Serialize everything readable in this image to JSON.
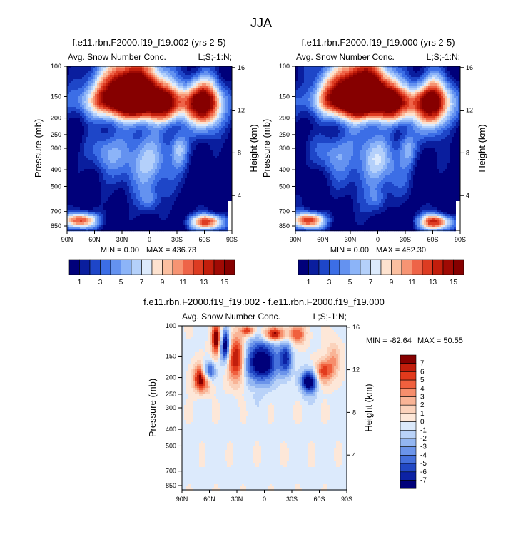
{
  "figure_title": "JJA",
  "chart_data": [
    {
      "type": "heatmap",
      "title": "f.e11.rbn.F2000.f19_f19.002 (yrs 2-5)",
      "left_label": "Avg. Snow Number Conc.",
      "right_label": "L;S;-1:N;",
      "xlabel": "",
      "ylabel": "Pressure (mb)",
      "y2label": "Height (km)",
      "x_ticks": [
        "90N",
        "60N",
        "30N",
        "0",
        "30S",
        "60S",
        "90S"
      ],
      "x_range": [
        90,
        -90
      ],
      "y_ticks": [
        "100",
        "150",
        "200",
        "250",
        "300",
        "400",
        "500",
        "700",
        "850"
      ],
      "y_range_mb": [
        100,
        900
      ],
      "y2_ticks": [
        "4",
        "8",
        "12",
        "16"
      ],
      "min_label": "MIN =   0.00",
      "max_label": "MAX = 436.73",
      "min": 0.0,
      "max": 436.73,
      "colorbar_labels": [
        "1",
        "3",
        "5",
        "7",
        "9",
        "11",
        "13",
        "15"
      ],
      "colorbar_orientation": "horizontal"
    },
    {
      "type": "heatmap",
      "title": "f.e11.rbn.F2000.f19_f19.000 (yrs 2-5)",
      "left_label": "Avg. Snow Number Conc.",
      "right_label": "L;S;-1:N;",
      "xlabel": "",
      "ylabel": "Pressure (mb)",
      "y2label": "Height (km)",
      "x_ticks": [
        "90N",
        "60N",
        "30N",
        "0",
        "30S",
        "60S",
        "90S"
      ],
      "x_range": [
        90,
        -90
      ],
      "y_ticks": [
        "100",
        "150",
        "200",
        "250",
        "300",
        "400",
        "500",
        "700",
        "850"
      ],
      "y_range_mb": [
        100,
        900
      ],
      "y2_ticks": [
        "4",
        "8",
        "12",
        "16"
      ],
      "min_label": "MIN =   0.00",
      "max_label": "MAX = 452.30",
      "min": 0.0,
      "max": 452.3,
      "colorbar_labels": [
        "1",
        "3",
        "5",
        "7",
        "9",
        "11",
        "13",
        "15"
      ],
      "colorbar_orientation": "horizontal"
    },
    {
      "type": "heatmap",
      "title": "f.e11.rbn.F2000.f19_f19.002 - f.e11.rbn.F2000.f19_f19.000",
      "left_label": "Avg. Snow Number Conc.",
      "right_label": "L;S;-1:N;",
      "xlabel": "",
      "ylabel": "Pressure (mb)",
      "y2label": "Height (km)",
      "x_ticks": [
        "90N",
        "60N",
        "30N",
        "0",
        "30S",
        "60S",
        "90S"
      ],
      "x_range": [
        90,
        -90
      ],
      "y_ticks": [
        "100",
        "150",
        "200",
        "250",
        "300",
        "400",
        "500",
        "700",
        "850"
      ],
      "y_range_mb": [
        100,
        900
      ],
      "y2_ticks": [
        "4",
        "8",
        "12",
        "16"
      ],
      "min_label": "MIN = -82.64",
      "max_label": "MAX =  50.55",
      "min": -82.64,
      "max": 50.55,
      "colorbar_labels": [
        "7",
        "6",
        "5",
        "4",
        "3",
        "2",
        "1",
        "0",
        "-1",
        "-2",
        "-3",
        "-4",
        "-5",
        "-6",
        "-7"
      ],
      "colorbar_orientation": "vertical"
    }
  ],
  "colors": {
    "abs_scale": [
      "#00007a",
      "#0a1e9e",
      "#1e46c8",
      "#3c6ee6",
      "#6492f0",
      "#8cb4f8",
      "#b4d0fa",
      "#dceafc",
      "#fde2cf",
      "#fbbfa0",
      "#f69473",
      "#ee6448",
      "#dd3c22",
      "#c21e0c",
      "#a00a04",
      "#860000"
    ],
    "diff_scale": [
      "#860000",
      "#c21e0c",
      "#e23a1c",
      "#f0603e",
      "#f68e6c",
      "#f9b496",
      "#fbd2bb",
      "#fde7d8",
      "#dceafc",
      "#b9d2f8",
      "#93b6f2",
      "#6b94ea",
      "#4570dc",
      "#2248c4",
      "#0c22a4",
      "#00007a"
    ]
  }
}
